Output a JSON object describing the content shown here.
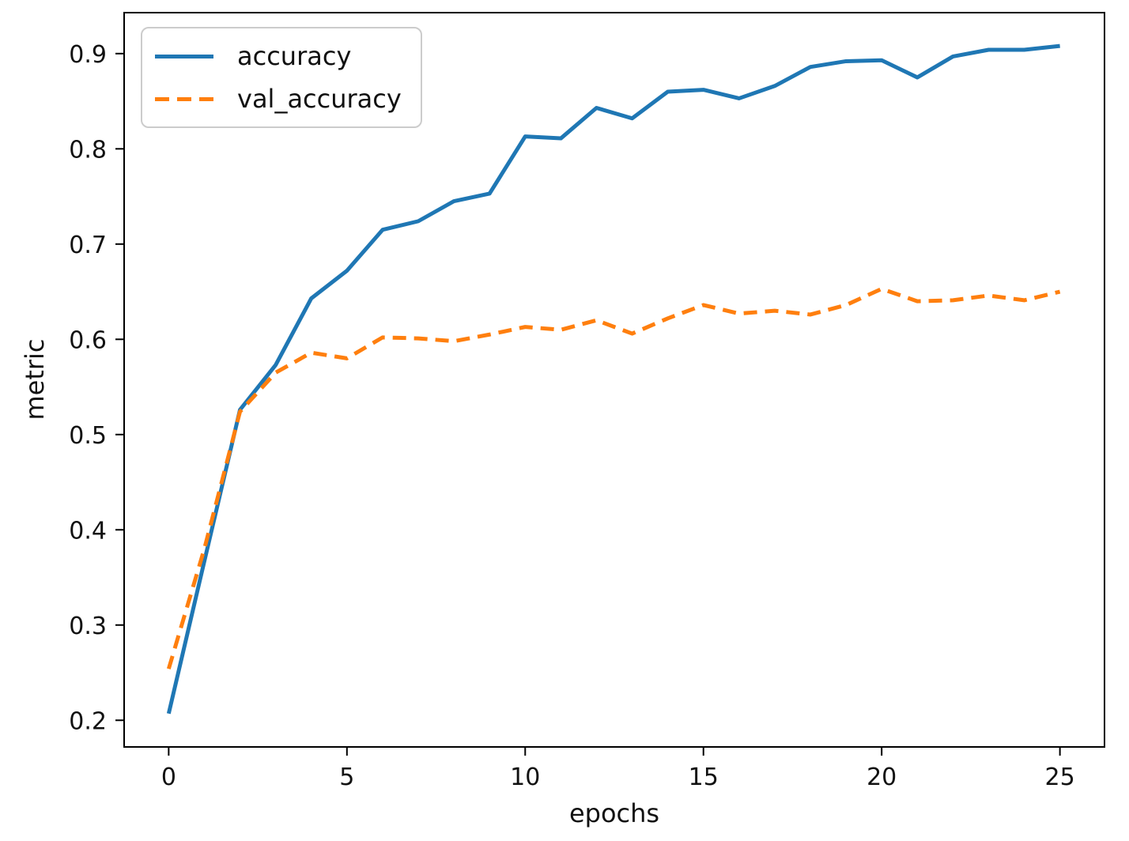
{
  "chart_data": {
    "type": "line",
    "title": "",
    "xlabel": "epochs",
    "ylabel": "metric",
    "x": [
      0,
      1,
      2,
      3,
      4,
      5,
      6,
      7,
      8,
      9,
      10,
      11,
      12,
      13,
      14,
      15,
      16,
      17,
      18,
      19,
      20,
      21,
      22,
      23,
      24,
      25
    ],
    "series": [
      {
        "name": "accuracy",
        "color": "#1f77b4",
        "line_style": "solid",
        "values": [
          0.207,
          0.367,
          0.526,
          0.573,
          0.643,
          0.672,
          0.715,
          0.724,
          0.745,
          0.753,
          0.813,
          0.811,
          0.843,
          0.832,
          0.86,
          0.862,
          0.853,
          0.866,
          0.886,
          0.892,
          0.893,
          0.875,
          0.897,
          0.904,
          0.904,
          0.908
        ]
      },
      {
        "name": "val_accuracy",
        "color": "#ff7f0e",
        "line_style": "dashed",
        "values": [
          0.254,
          0.38,
          0.524,
          0.565,
          0.586,
          0.58,
          0.602,
          0.601,
          0.598,
          0.605,
          0.613,
          0.61,
          0.62,
          0.606,
          0.622,
          0.636,
          0.627,
          0.63,
          0.626,
          0.636,
          0.653,
          0.64,
          0.641,
          0.646,
          0.641,
          0.65
        ]
      }
    ],
    "xlim": [
      -1.25,
      26.25
    ],
    "ylim": [
      0.172,
      0.943
    ],
    "xticks": [
      0,
      5,
      10,
      15,
      20,
      25
    ],
    "yticks": [
      0.2,
      0.3,
      0.4,
      0.5,
      0.6,
      0.7,
      0.8,
      0.9
    ],
    "grid": false,
    "legend_position": "upper-left",
    "axis_color": "#000000",
    "background": "#ffffff"
  }
}
